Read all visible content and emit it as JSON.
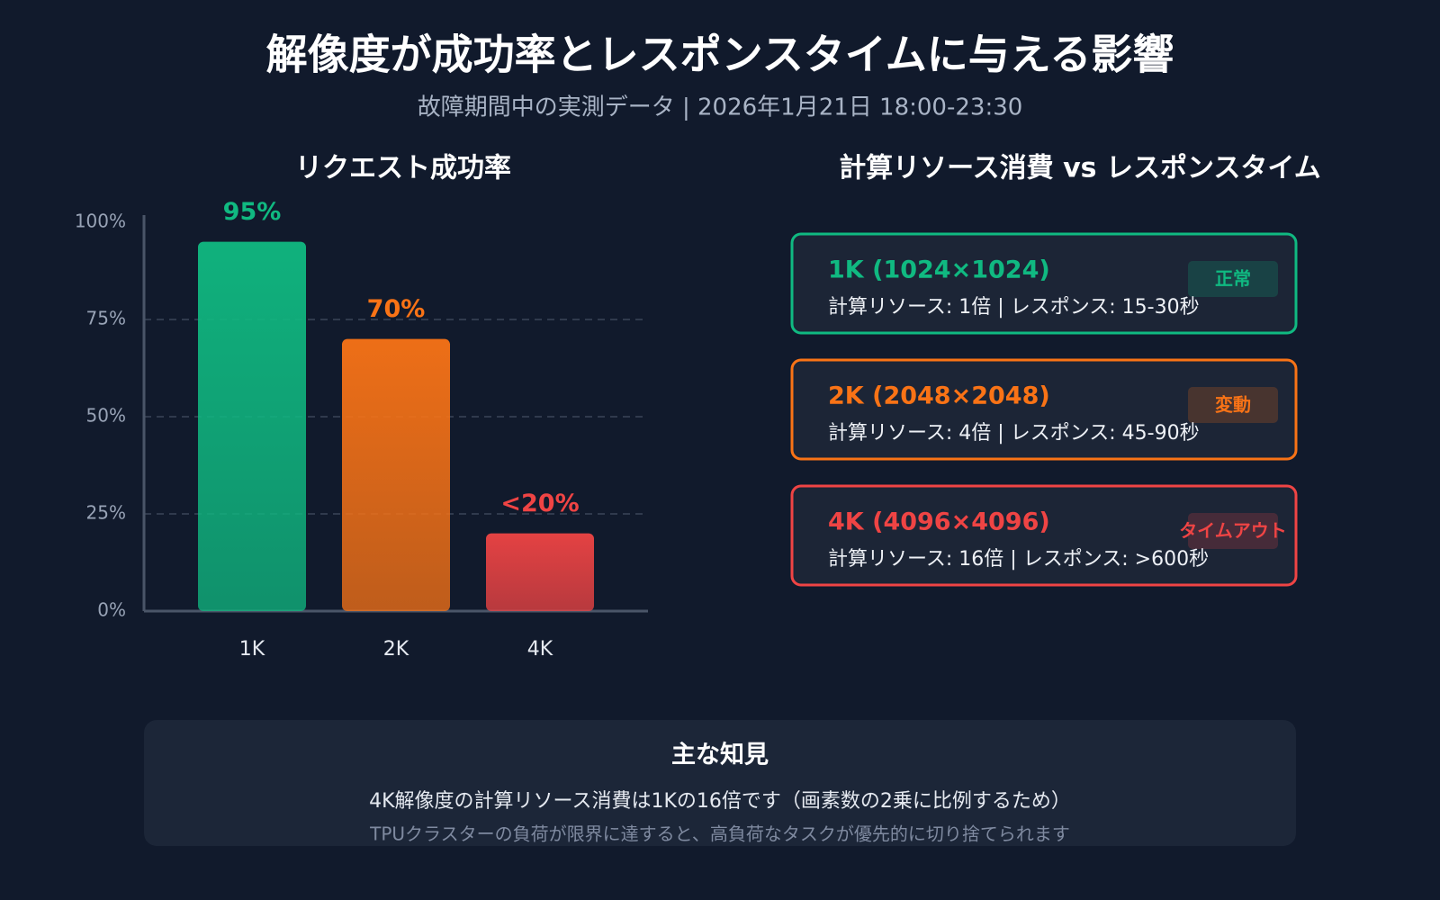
{
  "title": "解像度が成功率とレスポンスタイムに与える影響",
  "subtitle": "故障期間中の実測データ | 2026年1月21日 18:00-23:30",
  "chart_data": {
    "type": "bar",
    "title": "リクエスト成功率",
    "categories": [
      "1K",
      "2K",
      "4K"
    ],
    "values": [
      95,
      70,
      20
    ],
    "value_labels": [
      "95%",
      "70%",
      "<20%"
    ],
    "colors": [
      "#10b981",
      "#f97316",
      "#ef4444"
    ],
    "ylim": [
      0,
      100
    ],
    "yticks": [
      {
        "value": 0,
        "label": "0%"
      },
      {
        "value": 25,
        "label": "25%"
      },
      {
        "value": 50,
        "label": "50%"
      },
      {
        "value": 75,
        "label": "75%"
      },
      {
        "value": 100,
        "label": "100%"
      }
    ],
    "grid": true
  },
  "comparison": {
    "title": "計算リソース消費 vs レスポンスタイム",
    "cards": [
      {
        "heading": "1K (1024×1024)",
        "detail": "計算リソース: 1倍 | レスポンス: 15-30秒",
        "badge": "正常",
        "color": "#10b981"
      },
      {
        "heading": "2K (2048×2048)",
        "detail": "計算リソース: 4倍 | レスポンス: 45-90秒",
        "badge": "変動",
        "color": "#f97316"
      },
      {
        "heading": "4K (4096×4096)",
        "detail": "計算リソース: 16倍 | レスポンス: >600秒",
        "badge": "タイムアウト",
        "color": "#ef4444"
      }
    ]
  },
  "insights": {
    "title": "主な知見",
    "lines": [
      "4K解像度の計算リソース消費は1Kの16倍です（画素数の2乗に比例するため）",
      "TPUクラスターの負荷が限界に達すると、高負荷なタスクが優先的に切り捨てられます"
    ]
  }
}
